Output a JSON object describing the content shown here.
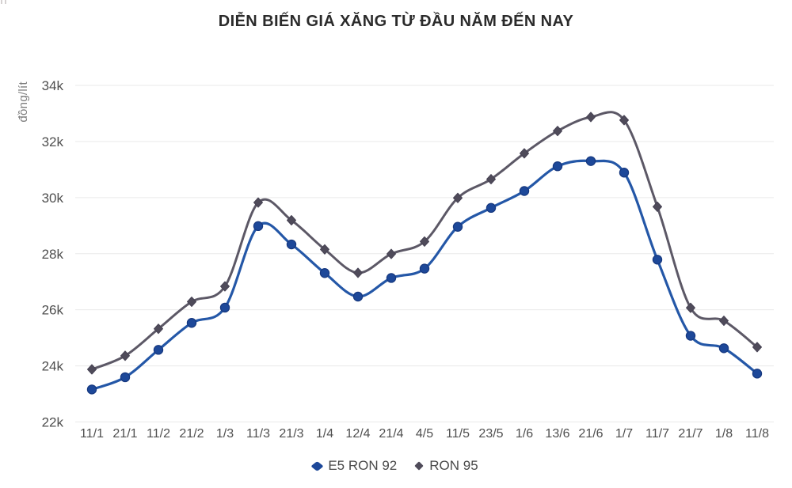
{
  "header": {
    "title": "DIỄN BIẾN GIÁ XĂNG TỪ ĐẦU NĂM ĐẾN NAY"
  },
  "chart_data": {
    "type": "line",
    "title": "DIỄN BIẾN GIÁ XĂNG TỪ ĐẦU NĂM ĐẾN NAY",
    "xlabel": "",
    "ylabel": "đồng/lít",
    "unit": "đồng/lít",
    "categories": [
      "11/1",
      "21/1",
      "11/2",
      "21/2",
      "1/3",
      "11/3",
      "21/3",
      "1/4",
      "12/4",
      "21/4",
      "4/5",
      "11/5",
      "23/5",
      "1/6",
      "13/6",
      "21/6",
      "1/7",
      "11/7",
      "21/7",
      "1/8",
      "11/8"
    ],
    "series": [
      {
        "name": "E5 RON 92",
        "marker": "circle",
        "line_color": "#2457a7",
        "marker_color": "#1d4899",
        "marker_edge_color": "#16387f",
        "values": [
          23159,
          23595,
          24571,
          25532,
          26077,
          28985,
          28330,
          27309,
          26470,
          27134,
          27468,
          28959,
          29633,
          30235,
          31117,
          31302,
          30891,
          27788,
          25073,
          24629,
          23725
        ]
      },
      {
        "name": "RON 95",
        "marker": "diamond",
        "line_color": "#5c5866",
        "marker_color": "#4f4b5a",
        "marker_edge_color": "#464253",
        "values": [
          23876,
          24360,
          25322,
          26287,
          26834,
          29824,
          29192,
          28153,
          27317,
          27992,
          28434,
          29988,
          30657,
          31578,
          32375,
          32873,
          32763,
          29675,
          26070,
          25608,
          24669
        ]
      }
    ],
    "ylim": [
      22000,
      34000
    ],
    "yticks": [
      {
        "value": 22000,
        "label": "22k"
      },
      {
        "value": 24000,
        "label": "24k"
      },
      {
        "value": 26000,
        "label": "26k"
      },
      {
        "value": 28000,
        "label": "28k"
      },
      {
        "value": 30000,
        "label": "30k"
      },
      {
        "value": 32000,
        "label": "32k"
      },
      {
        "value": 34000,
        "label": "34k"
      }
    ],
    "grid": "horizontal-only",
    "grid_color": "#eaeaea",
    "tick_label_color": "#4f4f4f",
    "legend_position": "bottom-center",
    "line_style": "smooth"
  }
}
